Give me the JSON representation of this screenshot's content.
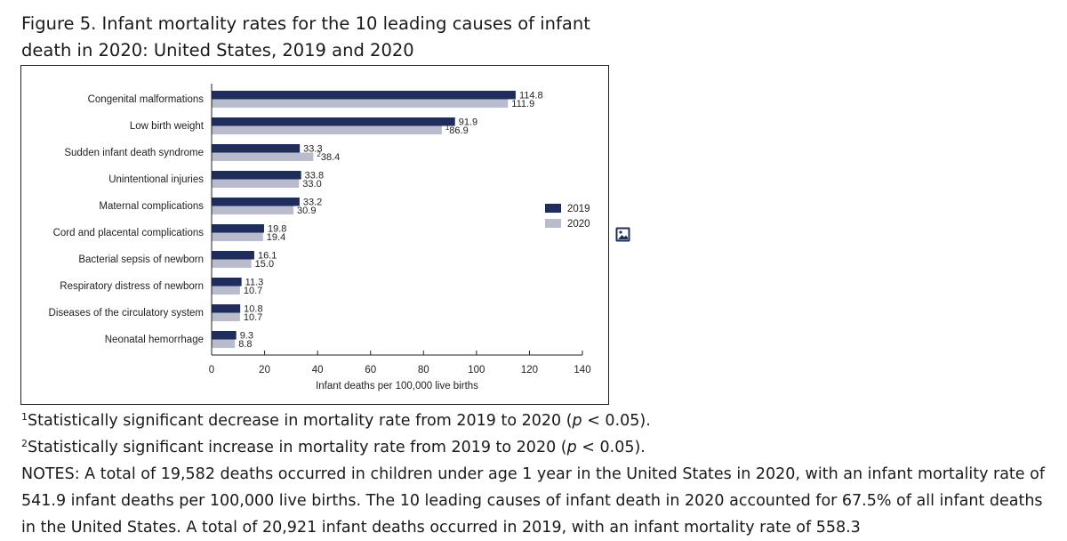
{
  "figure": {
    "title": "Figure 5. Infant mortality rates for the 10 leading causes of infant death in 2020: United States, 2019 and 2020"
  },
  "chart_data": {
    "type": "bar",
    "orientation": "horizontal",
    "categories": [
      "Congenital malformations",
      "Low birth weight",
      "Sudden infant death syndrome",
      "Unintentional injuries",
      "Maternal complications",
      "Cord and placental complications",
      "Bacterial sepsis of newborn",
      "Respiratory distress of newborn",
      "Diseases of the circulatory system",
      "Neonatal hemorrhage"
    ],
    "series": [
      {
        "name": "2019",
        "color": "#1f2d5c",
        "values": [
          114.8,
          91.9,
          33.3,
          33.8,
          33.2,
          19.8,
          16.1,
          11.3,
          10.8,
          9.3
        ],
        "labels": [
          "114.8",
          "91.9",
          "33.3",
          "33.8",
          "33.2",
          "19.8",
          "16.1",
          "11.3",
          "10.8",
          "9.3"
        ],
        "label_markers": [
          "",
          "",
          "",
          "",
          "",
          "",
          "",
          "",
          "",
          ""
        ]
      },
      {
        "name": "2020",
        "color": "#b8bccc",
        "values": [
          111.9,
          86.9,
          38.4,
          33.0,
          30.9,
          19.4,
          15.0,
          10.7,
          10.7,
          8.8
        ],
        "labels": [
          "111.9",
          "86.9",
          "38.4",
          "33.0",
          "30.9",
          "19.4",
          "15.0",
          "10.7",
          "10.7",
          "8.8"
        ],
        "label_markers": [
          "",
          "1",
          "2",
          "",
          "",
          "",
          "",
          "",
          "",
          ""
        ]
      }
    ],
    "xlabel": "Infant deaths per 100,000 live births",
    "xlim": [
      0,
      140
    ],
    "xticks": [
      0,
      20,
      40,
      60,
      80,
      100,
      120,
      140
    ],
    "grid": false,
    "legend_position": "right"
  },
  "footnotes": {
    "note1": {
      "marker": "1",
      "before": "Statistically significant decrease in mortality rate from 2019 to 2020 (",
      "p": "p",
      "after": " < 0.05)."
    },
    "note2": {
      "marker": "2",
      "before": "Statistically significant increase in mortality rate from 2019 to 2020 (",
      "p": "p",
      "after": " < 0.05)."
    },
    "notes": "NOTES: A total of 19,582 deaths occurred in children under age 1 year in the United States in 2020, with an infant mortality rate of 541.9 infant deaths per 100,000 live births. The 10 leading causes of infant death in 2020 accounted for 67.5% of all infant deaths in the United States. A total of 20,921 infant deaths occurred in 2019, with an infant mortality rate of 558.3"
  },
  "icons": {
    "image_icon": "image-icon"
  }
}
